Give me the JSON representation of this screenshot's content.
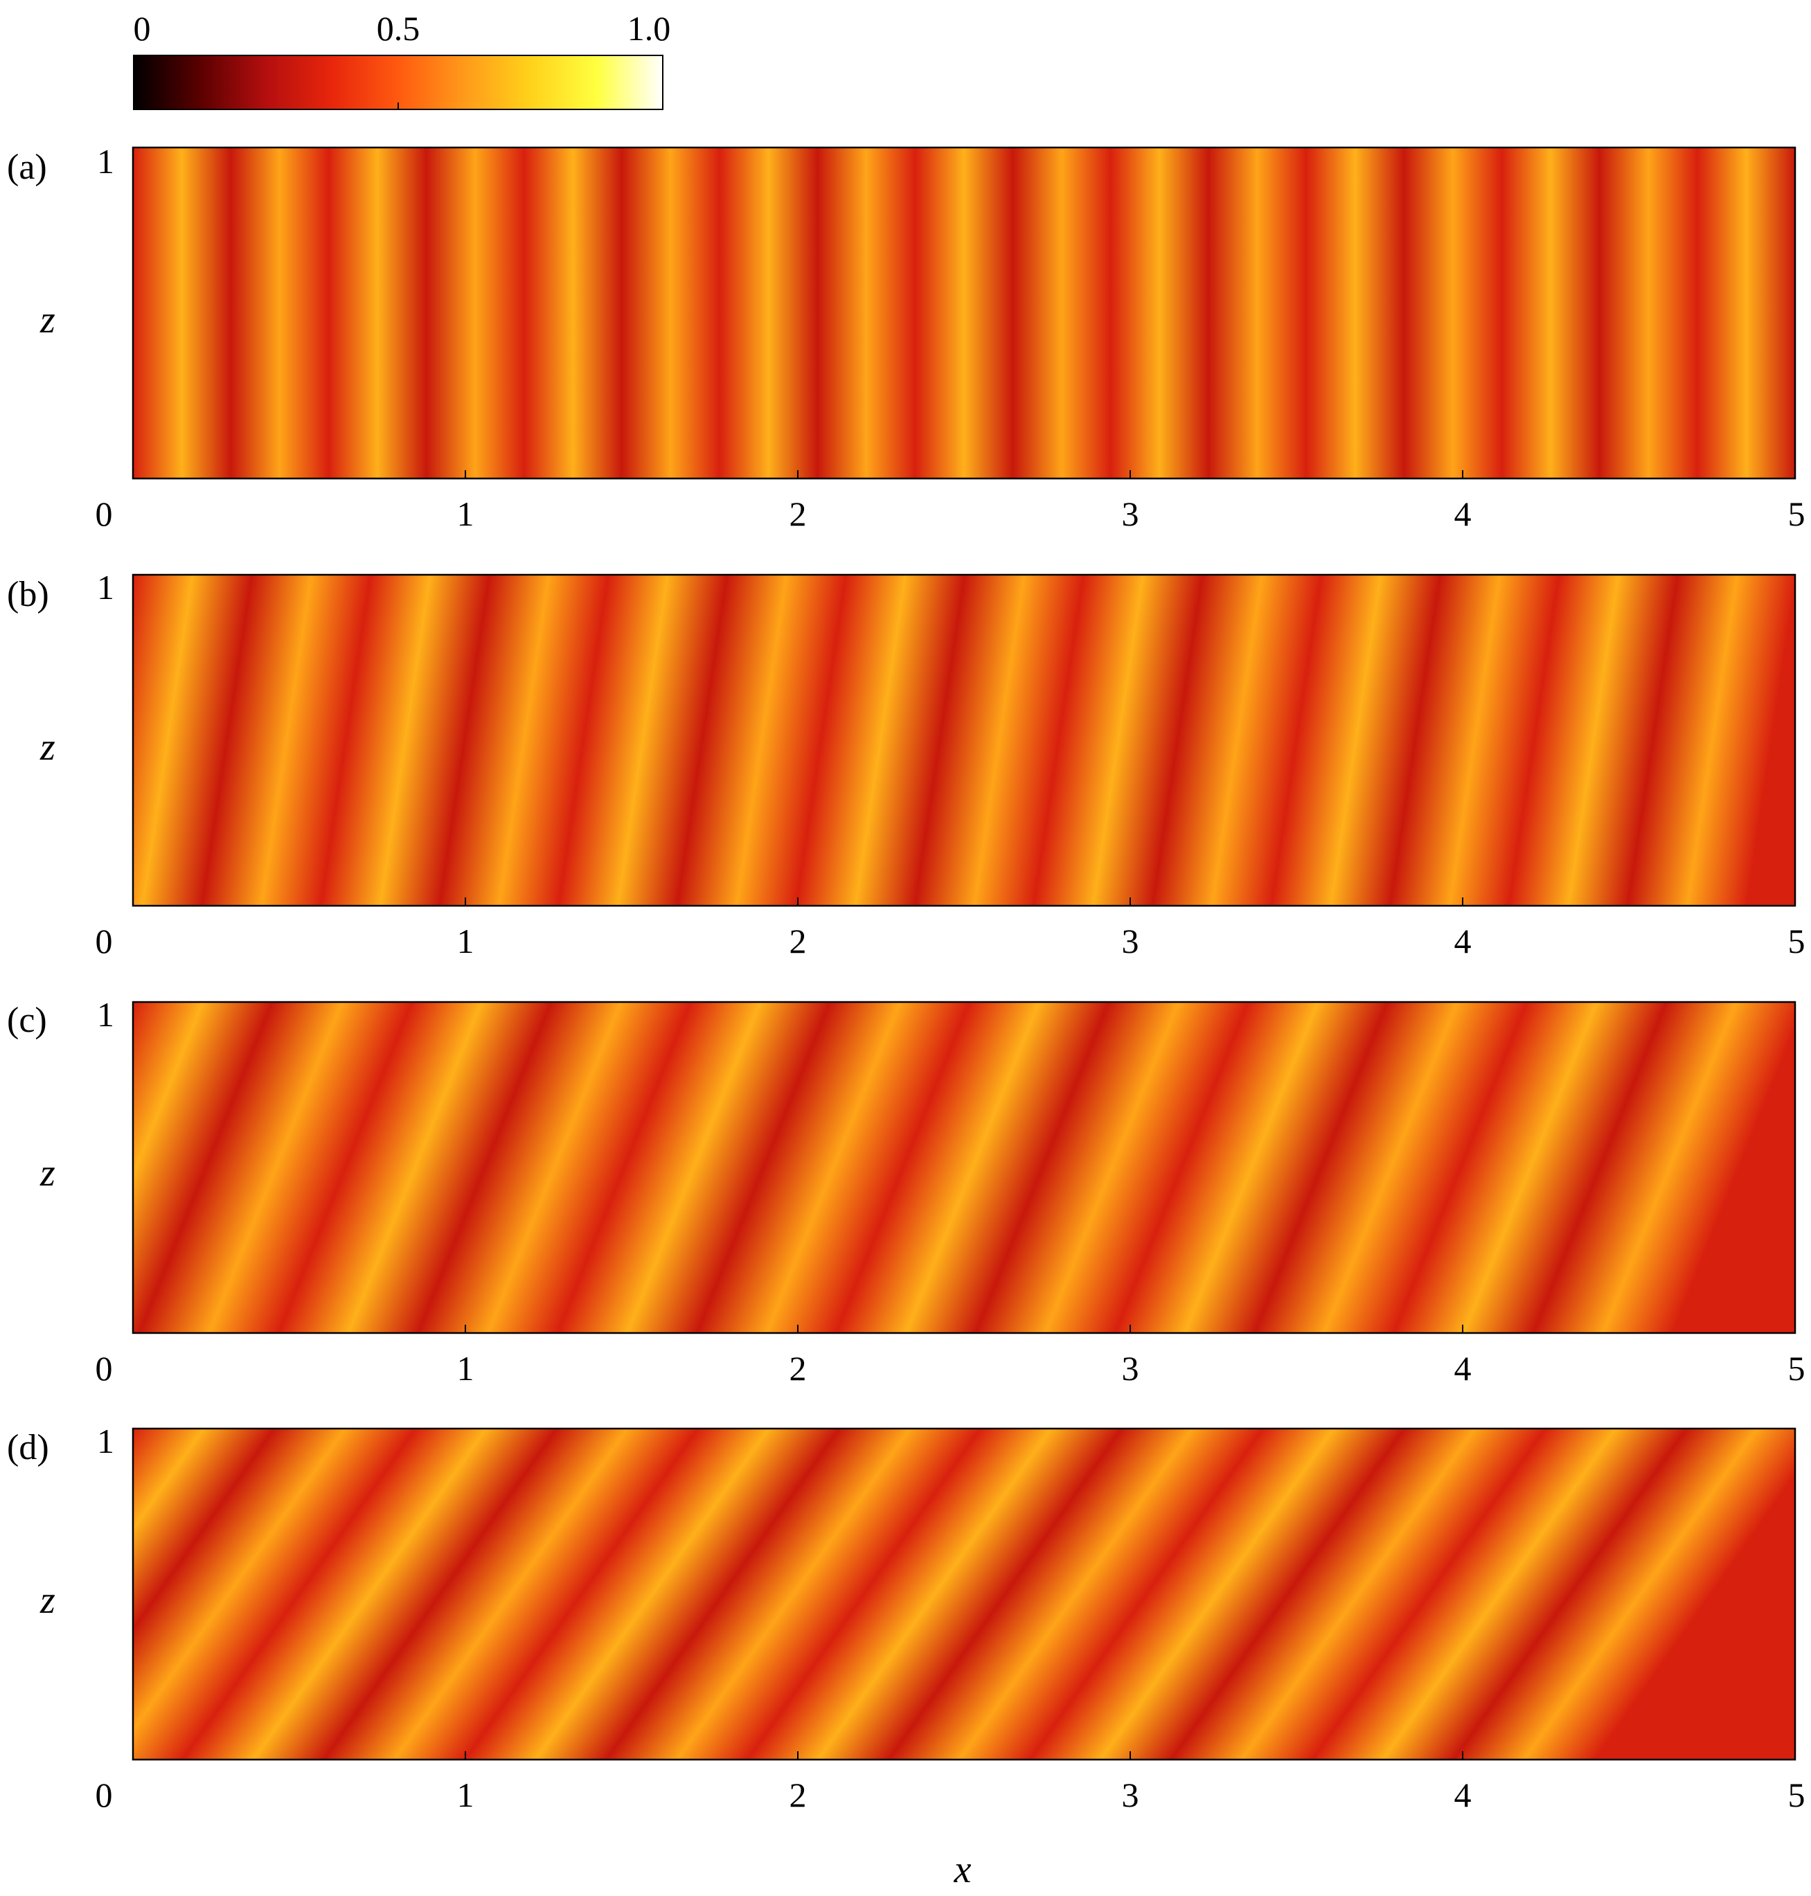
{
  "chart_data": [
    {
      "type": "colorbar",
      "ticks": [
        "0",
        "0.5",
        "1.0"
      ],
      "tick_values": [
        0,
        0.5,
        1.0
      ],
      "range": [
        0,
        1.0
      ],
      "colormap": [
        "#000000",
        "#5a0000",
        "#b40e0e",
        "#e8260c",
        "#ff5a10",
        "#ff9a1a",
        "#ffd21a",
        "#ffff40",
        "#ffffff"
      ]
    },
    {
      "type": "heatmap",
      "panel": "(a)",
      "xlabel": "",
      "ylabel": "z",
      "xlim": [
        0,
        5
      ],
      "ylim": [
        0,
        1
      ],
      "xticks": [
        "0",
        "1",
        "2",
        "3",
        "4",
        "5"
      ],
      "yticks": [
        "1"
      ],
      "plume_count": 17,
      "tilt": 0.0
    },
    {
      "type": "heatmap",
      "panel": "(b)",
      "xlabel": "",
      "ylabel": "z",
      "xlim": [
        0,
        5
      ],
      "ylim": [
        0,
        1
      ],
      "xticks": [
        "0",
        "1",
        "2",
        "3",
        "4",
        "5"
      ],
      "yticks": [
        "1"
      ],
      "plume_count": 14,
      "tilt": 0.03
    },
    {
      "type": "heatmap",
      "panel": "(c)",
      "xlabel": "",
      "ylabel": "z",
      "xlim": [
        0,
        5
      ],
      "ylim": [
        0,
        1
      ],
      "xticks": [
        "0",
        "1",
        "2",
        "3",
        "4",
        "5"
      ],
      "yticks": [
        "1"
      ],
      "plume_count": 12,
      "tilt": 0.08
    },
    {
      "type": "heatmap",
      "panel": "(d)",
      "xlabel": "x",
      "ylabel": "z",
      "xlim": [
        0,
        5
      ],
      "ylim": [
        0,
        1
      ],
      "xticks": [
        "0",
        "1",
        "2",
        "3",
        "4",
        "5"
      ],
      "yticks": [
        "1"
      ],
      "plume_count": 12,
      "tilt": 0.14
    }
  ]
}
